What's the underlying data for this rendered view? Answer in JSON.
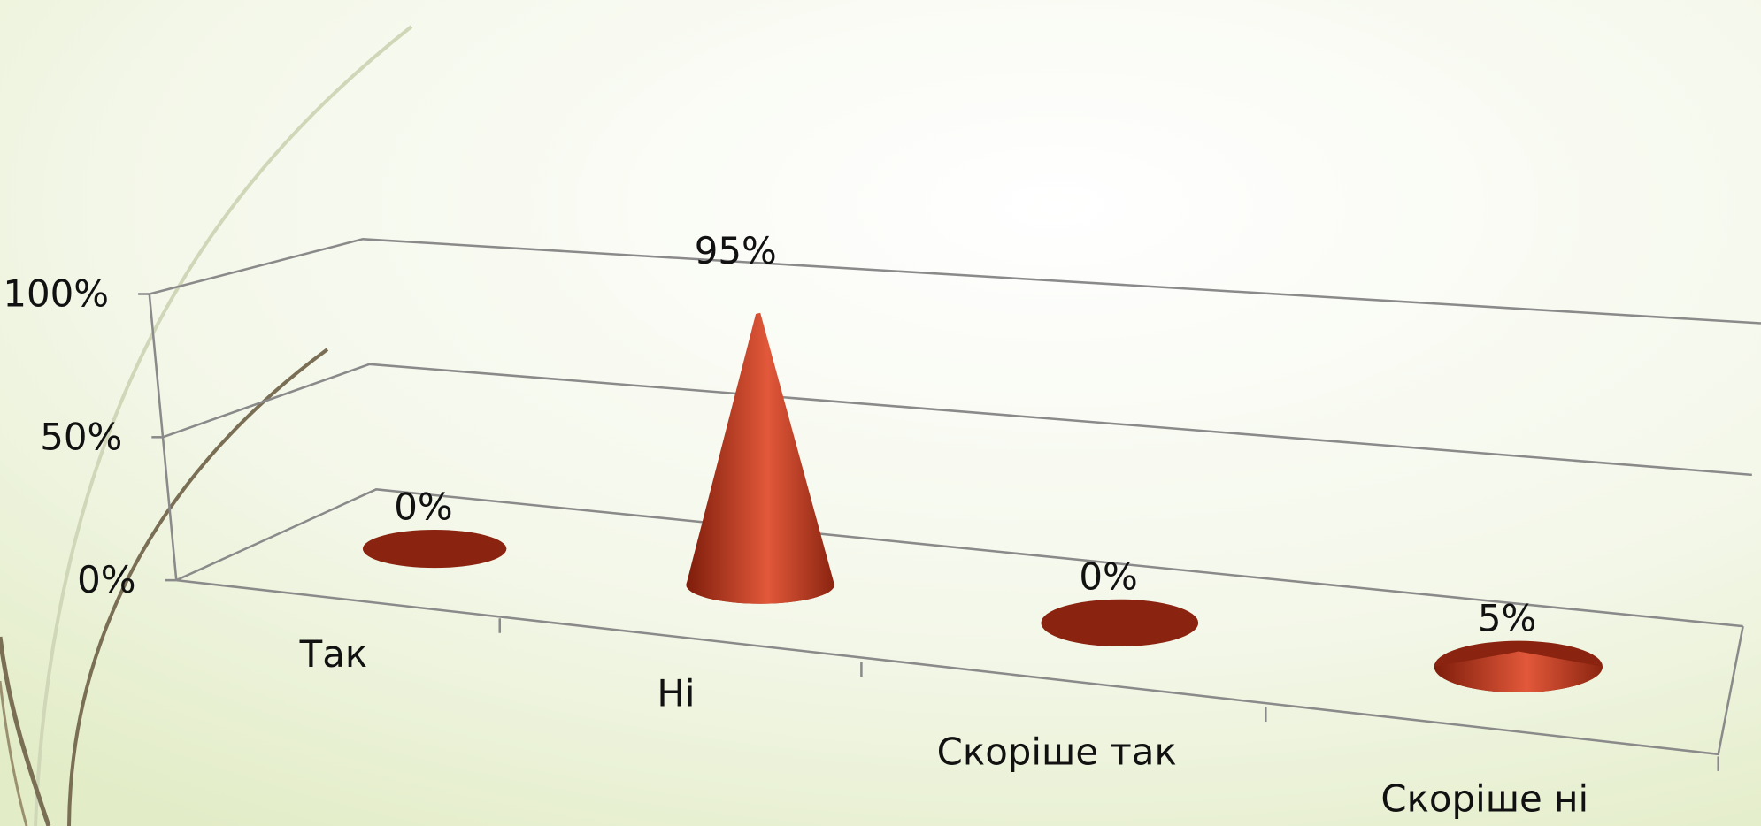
{
  "chart_data": {
    "type": "cone3d",
    "categories": [
      "Так",
      "Ні",
      "Скоріше так",
      "Скоріше ні"
    ],
    "values": [
      0,
      95,
      0,
      5
    ],
    "value_labels": [
      "0%",
      "95%",
      "0%",
      "5%"
    ],
    "color": "#c0391b",
    "ylim": [
      0,
      100
    ],
    "yticks": [
      {
        "value": 0,
        "label": "0%"
      },
      {
        "value": 50,
        "label": "50%"
      },
      {
        "value": 100,
        "label": "100%"
      }
    ],
    "grid": true
  }
}
